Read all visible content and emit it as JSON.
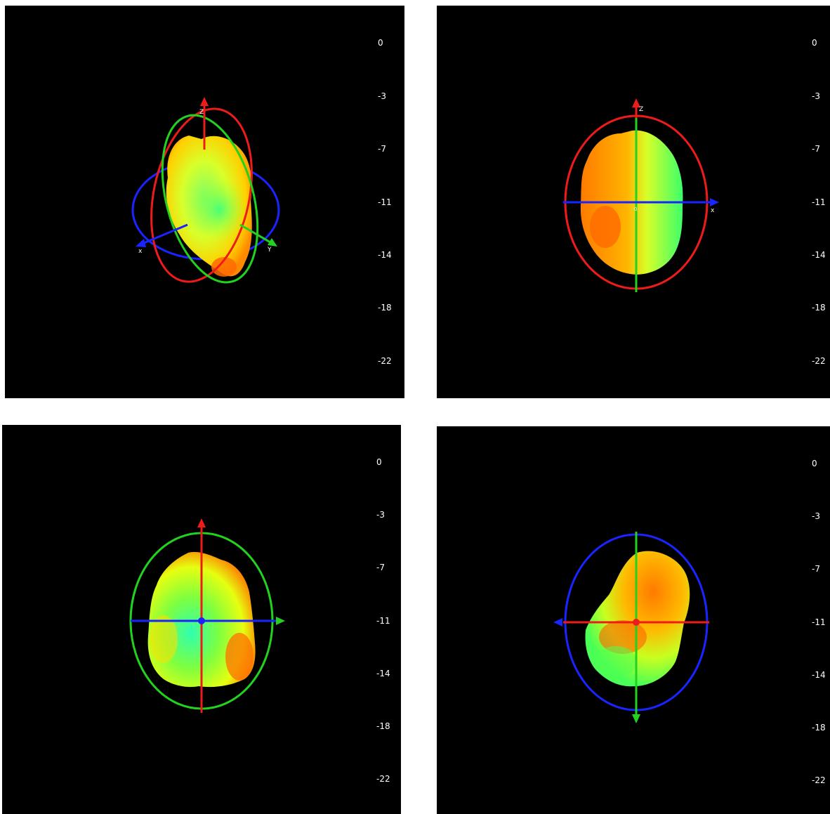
{
  "colors": {
    "background": "#000000",
    "x_axis": "#1a24ff",
    "y_axis": "#22d21f",
    "z_axis": "#ee1b1b",
    "pattern_high": "#ff5a00",
    "pattern_mid": "#ffe800",
    "pattern_low": "#3fff7a"
  },
  "scale_ticks": [
    "0",
    "-3",
    "-7",
    "-11",
    "-14",
    "-18",
    "-22"
  ],
  "axis_labels": {
    "x": "x",
    "y": "Y",
    "z": "Z",
    "origin": "0"
  },
  "panels": [
    {
      "view": "isometric",
      "scale_ticks": [
        "0",
        "-3",
        "-7",
        "-11",
        "-14",
        "-18",
        "-22"
      ]
    },
    {
      "view": "front",
      "scale_ticks": [
        "0",
        "-3",
        "-7",
        "-11",
        "-14",
        "-18",
        "-22"
      ]
    },
    {
      "view": "top",
      "scale_ticks": [
        "0",
        "-3",
        "-7",
        "-11",
        "-14",
        "-18",
        "-22"
      ]
    },
    {
      "view": "side",
      "scale_ticks": [
        "0",
        "-3",
        "-7",
        "-11",
        "-14",
        "-18",
        "-22"
      ]
    }
  ]
}
